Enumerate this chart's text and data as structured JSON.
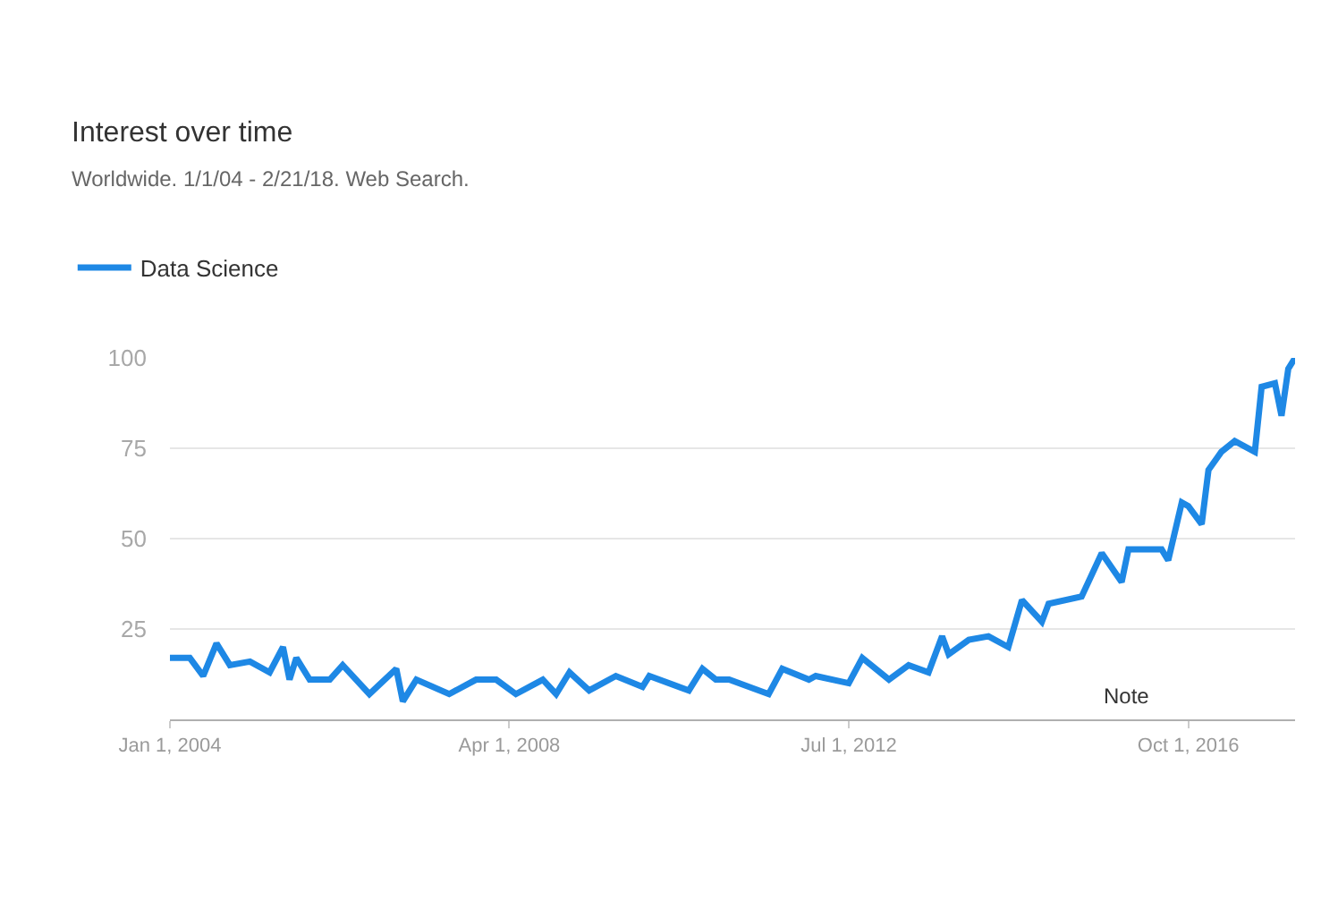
{
  "chart_data": {
    "type": "line",
    "title": "Interest over time",
    "subtitle": "Worldwide. 1/1/04 - 2/21/18. Web Search.",
    "x": [
      "2004-01",
      "2004-04",
      "2004-06",
      "2004-08",
      "2004-10",
      "2005-01",
      "2005-04",
      "2005-06",
      "2005-07",
      "2005-08",
      "2005-10",
      "2006-01",
      "2006-03",
      "2006-07",
      "2006-11",
      "2006-12",
      "2007-02",
      "2007-07",
      "2007-11",
      "2008-02",
      "2008-05",
      "2008-09",
      "2008-11",
      "2009-01",
      "2009-04",
      "2009-08",
      "2009-12",
      "2010-01",
      "2010-07",
      "2010-09",
      "2010-11",
      "2011-01",
      "2011-07",
      "2011-09",
      "2012-01",
      "2012-02",
      "2012-07",
      "2012-09",
      "2013-01",
      "2013-04",
      "2013-07",
      "2013-09",
      "2013-10",
      "2014-01",
      "2014-04",
      "2014-07",
      "2014-09",
      "2014-12",
      "2015-01",
      "2015-06",
      "2015-09",
      "2015-12",
      "2016-01",
      "2016-06",
      "2016-07",
      "2016-09",
      "2016-10",
      "2016-12",
      "2017-01",
      "2017-03",
      "2017-05",
      "2017-08",
      "2017-09",
      "2017-11",
      "2017-12",
      "2018-01",
      "2018-02"
    ],
    "series": [
      {
        "name": "Data Science",
        "color": "#1e88e5",
        "values": [
          17,
          17,
          12,
          21,
          15,
          16,
          13,
          20,
          11,
          17,
          11,
          11,
          15,
          7,
          14,
          5,
          11,
          7,
          11,
          11,
          7,
          11,
          7,
          13,
          8,
          12,
          9,
          12,
          8,
          14,
          11,
          11,
          7,
          14,
          11,
          12,
          10,
          17,
          11,
          15,
          13,
          23,
          18,
          22,
          23,
          20,
          33,
          27,
          32,
          34,
          46,
          38,
          47,
          47,
          44,
          60,
          59,
          54,
          69,
          74,
          77,
          74,
          92,
          93,
          84,
          97,
          100
        ]
      }
    ],
    "xlim": [
      "2004-01",
      "2018-02"
    ],
    "xticks": [
      {
        "value": "2004-01-01",
        "label": "Jan 1, 2004"
      },
      {
        "value": "2008-04-01",
        "label": "Apr 1, 2008"
      },
      {
        "value": "2012-07-01",
        "label": "Jul 1, 2012"
      },
      {
        "value": "2016-10-01",
        "label": "Oct 1, 2016"
      }
    ],
    "ylim": [
      0,
      100
    ],
    "yticks": [
      25,
      50,
      75,
      100
    ],
    "annotations": [
      "Note"
    ],
    "grid": "y",
    "legend": "top left",
    "marker": "none",
    "line_style": "solid"
  }
}
